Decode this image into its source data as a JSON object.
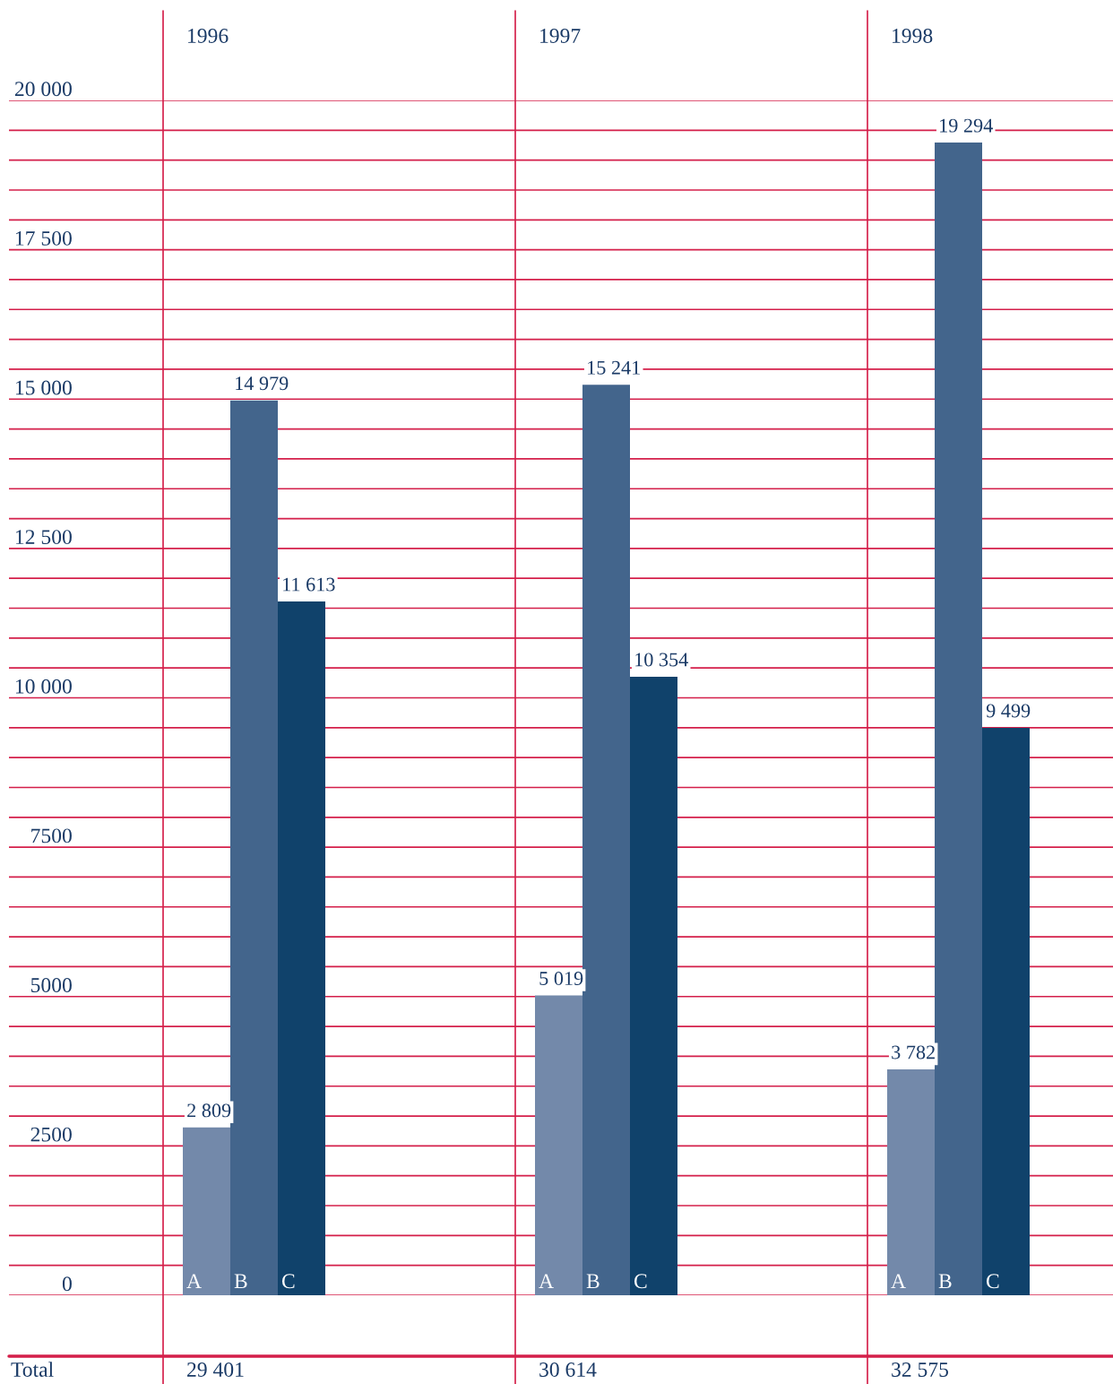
{
  "chart_data": {
    "type": "bar",
    "categories": [
      "1996",
      "1997",
      "1998"
    ],
    "series": [
      {
        "name": "A",
        "color": "#7389aa",
        "values": [
          2809,
          5019,
          3782
        ],
        "value_labels": [
          "2 809",
          "5 019",
          "3 782"
        ]
      },
      {
        "name": "B",
        "color": "#43658c",
        "values": [
          14979,
          15241,
          19294
        ],
        "value_labels": [
          "14 979",
          "15 241",
          "19 294"
        ]
      },
      {
        "name": "C",
        "color": "#10426b",
        "values": [
          11613,
          10354,
          9499
        ],
        "value_labels": [
          "11 613",
          "10 354",
          "9 499"
        ]
      }
    ],
    "ylim": [
      0,
      20000
    ],
    "yticks": [
      {
        "value": 0,
        "label": "0"
      },
      {
        "value": 500,
        "label": null
      },
      {
        "value": 1000,
        "label": null
      },
      {
        "value": 1500,
        "label": null
      },
      {
        "value": 2000,
        "label": null
      },
      {
        "value": 2500,
        "label": "2500"
      },
      {
        "value": 3000,
        "label": null
      },
      {
        "value": 3500,
        "label": null
      },
      {
        "value": 4000,
        "label": null
      },
      {
        "value": 4500,
        "label": null
      },
      {
        "value": 5000,
        "label": "5000"
      },
      {
        "value": 5500,
        "label": null
      },
      {
        "value": 6000,
        "label": null
      },
      {
        "value": 6500,
        "label": null
      },
      {
        "value": 7000,
        "label": null
      },
      {
        "value": 7500,
        "label": "7500"
      },
      {
        "value": 8000,
        "label": null
      },
      {
        "value": 8500,
        "label": null
      },
      {
        "value": 9000,
        "label": null
      },
      {
        "value": 9500,
        "label": null
      },
      {
        "value": 10000,
        "label": "10 000"
      },
      {
        "value": 10500,
        "label": null
      },
      {
        "value": 11000,
        "label": null
      },
      {
        "value": 11500,
        "label": null
      },
      {
        "value": 12000,
        "label": null
      },
      {
        "value": 12500,
        "label": "12 500"
      },
      {
        "value": 13000,
        "label": null
      },
      {
        "value": 13500,
        "label": null
      },
      {
        "value": 14000,
        "label": null
      },
      {
        "value": 14500,
        "label": null
      },
      {
        "value": 15000,
        "label": "15 000"
      },
      {
        "value": 15500,
        "label": null
      },
      {
        "value": 16000,
        "label": null
      },
      {
        "value": 16500,
        "label": null
      },
      {
        "value": 17000,
        "label": null
      },
      {
        "value": 17500,
        "label": "17 500"
      },
      {
        "value": 18000,
        "label": null
      },
      {
        "value": 18500,
        "label": null
      },
      {
        "value": 19000,
        "label": null
      },
      {
        "value": 19500,
        "label": null
      },
      {
        "value": 20000,
        "label": "20 000"
      }
    ],
    "grid": "y",
    "legend": false,
    "totals": [
      "29 401",
      "30 614",
      "32 575"
    ],
    "annotations": [
      "Total"
    ]
  }
}
